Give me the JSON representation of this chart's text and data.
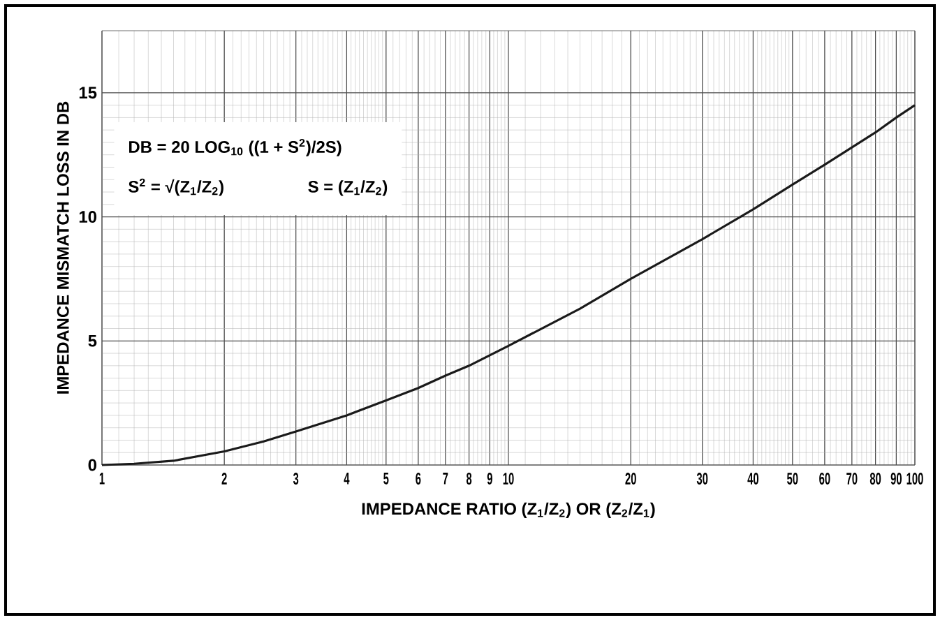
{
  "chart_data": {
    "type": "line",
    "xlabel": "IMPEDANCE RATIO (Z$_{1}$/Z$_{2}$) OR (Z$_{2}$/Z$_{1}$)",
    "ylabel": "IMPEDANCE MISMATCH LOSS IN DB",
    "annotations": [
      "DB = 20 LOG$_{10}$ ((1 + S$^{2}$)/2S)",
      "S$^{2}$ = √(Z$_{1}$/Z$_{2}$)",
      "S = (Z$_{1}$/Z$_{2}$)"
    ],
    "x": [
      1,
      1.2,
      1.5,
      2,
      2.5,
      3,
      4,
      5,
      6,
      7,
      8,
      10,
      15,
      20,
      30,
      40,
      50,
      60,
      70,
      80,
      90,
      100
    ],
    "values": [
      0,
      0.05,
      0.17,
      0.55,
      0.95,
      1.35,
      2.0,
      2.6,
      3.1,
      3.6,
      4.0,
      4.8,
      6.3,
      7.5,
      9.1,
      10.3,
      11.3,
      12.1,
      12.8,
      13.4,
      14.0,
      14.5
    ],
    "color": "#1a1a1a",
    "log": "x",
    "grid": true,
    "xlim": [
      1,
      100
    ],
    "ylim": [
      0,
      17.5
    ],
    "xticks": [
      1,
      2,
      3,
      4,
      5,
      6,
      7,
      8,
      9,
      10,
      20,
      30,
      40,
      50,
      60,
      70,
      80,
      90,
      100
    ],
    "yticks": [
      0,
      5,
      10,
      15
    ]
  }
}
